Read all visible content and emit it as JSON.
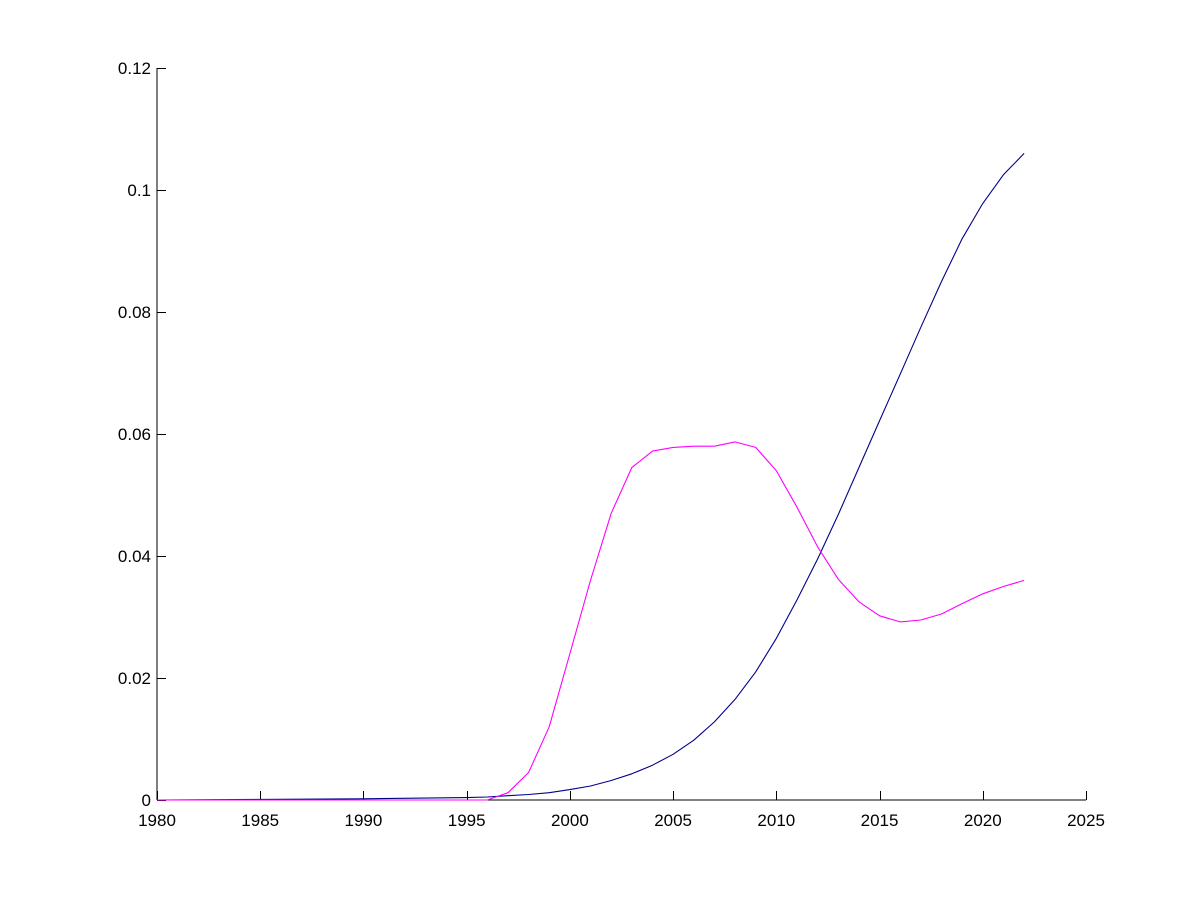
{
  "chart_data": {
    "type": "line",
    "title": "",
    "xlabel": "",
    "ylabel": "",
    "xlim": [
      1980,
      2025
    ],
    "ylim": [
      0,
      0.12
    ],
    "xticks": [
      1980,
      1985,
      1990,
      1995,
      2000,
      2005,
      2010,
      2015,
      2020,
      2025
    ],
    "xtick_labels": [
      "1980",
      "1985",
      "1990",
      "1995",
      "2000",
      "2005",
      "2010",
      "2015",
      "2020",
      "2025"
    ],
    "yticks": [
      0,
      0.02,
      0.04,
      0.06,
      0.08,
      0.1,
      0.12
    ],
    "ytick_labels": [
      "0",
      "0.02",
      "0.04",
      "0.06",
      "0.08",
      "0.1",
      "0.12"
    ],
    "grid": false,
    "legend": "none",
    "series": [
      {
        "color": "#00008b",
        "x": [
          1980,
          1985,
          1990,
          1995,
          1996,
          1997,
          1998,
          1999,
          2000,
          2001,
          2002,
          2003,
          2004,
          2005,
          2006,
          2007,
          2008,
          2009,
          2010,
          2011,
          2012,
          2013,
          2014,
          2015,
          2016,
          2017,
          2018,
          2019,
          2020,
          2021,
          2022
        ],
        "y": [
          0,
          0.0001,
          0.0002,
          0.0004,
          0.0005,
          0.0007,
          0.0009,
          0.0012,
          0.0017,
          0.0023,
          0.0032,
          0.0043,
          0.0057,
          0.0075,
          0.0098,
          0.0128,
          0.0165,
          0.021,
          0.0265,
          0.0328,
          0.0395,
          0.0468,
          0.0545,
          0.0622,
          0.0698,
          0.0775,
          0.085,
          0.092,
          0.0978,
          0.1025,
          0.106
        ]
      },
      {
        "color": "#ff00ff",
        "x": [
          1980,
          1985,
          1990,
          1995,
          1996,
          1997,
          1998,
          1999,
          2000,
          2001,
          2002,
          2003,
          2004,
          2005,
          2006,
          2007,
          2008,
          2009,
          2010,
          2011,
          2012,
          2013,
          2014,
          2015,
          2016,
          2017,
          2018,
          2019,
          2020,
          2021,
          2022
        ],
        "y": [
          0,
          0,
          0,
          0,
          0,
          0.0012,
          0.0045,
          0.012,
          0.024,
          0.036,
          0.047,
          0.0545,
          0.0572,
          0.0578,
          0.058,
          0.058,
          0.0587,
          0.0578,
          0.054,
          0.048,
          0.0415,
          0.0362,
          0.0325,
          0.0302,
          0.0292,
          0.0295,
          0.0305,
          0.0322,
          0.0338,
          0.035,
          0.036
        ]
      }
    ]
  }
}
